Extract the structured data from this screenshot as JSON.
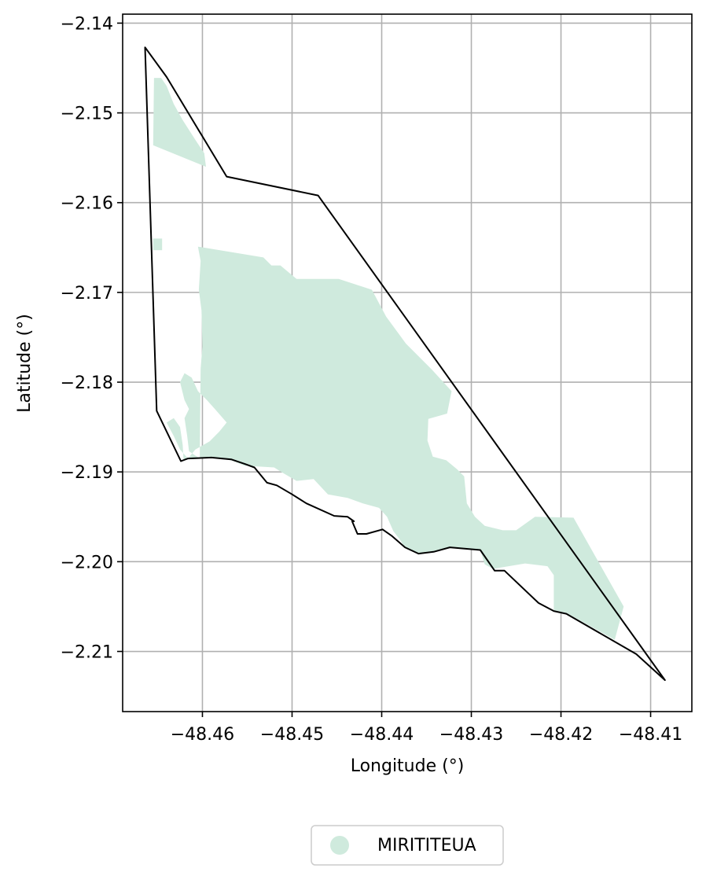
{
  "chart_data": {
    "type": "map",
    "xlabel": "Longitude (°)",
    "ylabel": "Latitude (°)",
    "xlim": [
      -48.4689,
      -48.4054
    ],
    "ylim": [
      -2.2167,
      -2.139
    ],
    "grid": true,
    "legend_position": "bottom-center",
    "x_ticks": [
      {
        "value": -48.46,
        "label": "−48.46"
      },
      {
        "value": -48.45,
        "label": "−48.45"
      },
      {
        "value": -48.44,
        "label": "−48.44"
      },
      {
        "value": -48.43,
        "label": "−48.43"
      },
      {
        "value": -48.42,
        "label": "−48.42"
      },
      {
        "value": -48.41,
        "label": "−48.41"
      }
    ],
    "y_ticks": [
      {
        "value": -2.14,
        "label": "−2.14"
      },
      {
        "value": -2.15,
        "label": "−2.15"
      },
      {
        "value": -2.16,
        "label": "−2.16"
      },
      {
        "value": -2.17,
        "label": "−2.17"
      },
      {
        "value": -2.18,
        "label": "−2.18"
      },
      {
        "value": -2.19,
        "label": "−2.19"
      },
      {
        "value": -2.2,
        "label": "−2.20"
      },
      {
        "value": -2.21,
        "label": "−2.21"
      }
    ],
    "boundary": [
      [
        -48.4664,
        -2.1427
      ],
      [
        -48.464,
        -2.146
      ],
      [
        -48.4573,
        -2.1571
      ],
      [
        -48.4471,
        -2.1592
      ],
      [
        -48.4084,
        -2.2132
      ],
      [
        -48.4116,
        -2.2103
      ],
      [
        -48.4194,
        -2.2058
      ],
      [
        -48.4208,
        -2.2055
      ],
      [
        -48.4225,
        -2.2046
      ],
      [
        -48.4263,
        -2.201
      ],
      [
        -48.4274,
        -2.201
      ],
      [
        -48.429,
        -2.1987
      ],
      [
        -48.4324,
        -2.1984
      ],
      [
        -48.4342,
        -2.1989
      ],
      [
        -48.4359,
        -2.1991
      ],
      [
        -48.4374,
        -2.1984
      ],
      [
        -48.4389,
        -2.1971
      ],
      [
        -48.4399,
        -2.1964
      ],
      [
        -48.4417,
        -2.1969
      ],
      [
        -48.4427,
        -2.1969
      ],
      [
        -48.4433,
        -2.1955
      ],
      [
        -48.4431,
        -2.1955
      ],
      [
        -48.4438,
        -2.195
      ],
      [
        -48.4453,
        -2.1949
      ],
      [
        -48.4484,
        -2.1935
      ],
      [
        -48.45,
        -2.1925
      ],
      [
        -48.4517,
        -2.1915
      ],
      [
        -48.4528,
        -2.1912
      ],
      [
        -48.4542,
        -2.1895
      ],
      [
        -48.4553,
        -2.1891
      ],
      [
        -48.4568,
        -2.1886
      ],
      [
        -48.459,
        -2.1884
      ],
      [
        -48.4616,
        -2.1885
      ],
      [
        -48.4624,
        -2.1888
      ],
      [
        -48.4651,
        -2.1832
      ],
      [
        -48.4664,
        -2.1427
      ]
    ],
    "series": [
      {
        "name": "MIRITITEUA",
        "color": "#cfeadd",
        "polygons": [
          [
            [
              -48.4654,
              -2.1461
            ],
            [
              -48.4646,
              -2.1461
            ],
            [
              -48.464,
              -2.147
            ],
            [
              -48.4632,
              -2.149
            ],
            [
              -48.4622,
              -2.1508
            ],
            [
              -48.4608,
              -2.153
            ],
            [
              -48.4598,
              -2.1545
            ],
            [
              -48.4596,
              -2.156
            ],
            [
              -48.4655,
              -2.1536
            ]
          ],
          [
            [
              -48.4605,
              -2.1649
            ],
            [
              -48.4532,
              -2.1661
            ],
            [
              -48.4523,
              -2.167
            ],
            [
              -48.4513,
              -2.167
            ],
            [
              -48.4495,
              -2.1685
            ],
            [
              -48.4448,
              -2.1685
            ],
            [
              -48.4411,
              -2.1697
            ],
            [
              -48.4395,
              -2.1727
            ],
            [
              -48.4373,
              -2.1757
            ],
            [
              -48.4344,
              -2.1786
            ],
            [
              -48.4322,
              -2.181
            ],
            [
              -48.4327,
              -2.1835
            ],
            [
              -48.4348,
              -2.1841
            ],
            [
              -48.4349,
              -2.1865
            ],
            [
              -48.4343,
              -2.1883
            ],
            [
              -48.4328,
              -2.1887
            ],
            [
              -48.4316,
              -2.1897
            ],
            [
              -48.4308,
              -2.1905
            ],
            [
              -48.4305,
              -2.1935
            ],
            [
              -48.4296,
              -2.195
            ],
            [
              -48.4285,
              -2.196
            ],
            [
              -48.4265,
              -2.1965
            ],
            [
              -48.425,
              -2.1965
            ],
            [
              -48.4229,
              -2.195
            ],
            [
              -48.4186,
              -2.1951
            ],
            [
              -48.413,
              -2.205
            ],
            [
              -48.414,
              -2.2087
            ],
            [
              -48.4194,
              -2.2057
            ],
            [
              -48.4208,
              -2.2054
            ],
            [
              -48.4208,
              -2.2015
            ],
            [
              -48.4215,
              -2.2005
            ],
            [
              -48.424,
              -2.2002
            ],
            [
              -48.4276,
              -2.2008
            ],
            [
              -48.4285,
              -2.2003
            ],
            [
              -48.429,
              -2.1987
            ],
            [
              -48.4324,
              -2.1984
            ],
            [
              -48.4342,
              -2.1989
            ],
            [
              -48.4359,
              -2.1991
            ],
            [
              -48.4374,
              -2.1984
            ],
            [
              -48.438,
              -2.1975
            ],
            [
              -48.4387,
              -2.1966
            ],
            [
              -48.4394,
              -2.195
            ],
            [
              -48.4403,
              -2.194
            ],
            [
              -48.4421,
              -2.1935
            ],
            [
              -48.4438,
              -2.1929
            ],
            [
              -48.446,
              -2.1925
            ],
            [
              -48.4476,
              -2.1908
            ],
            [
              -48.4495,
              -2.191
            ],
            [
              -48.4512,
              -2.19
            ],
            [
              -48.452,
              -2.1895
            ],
            [
              -48.4553,
              -2.1893
            ],
            [
              -48.4568,
              -2.1887
            ],
            [
              -48.459,
              -2.1884
            ],
            [
              -48.4616,
              -2.1885
            ],
            [
              -48.4608,
              -2.1875
            ],
            [
              -48.4592,
              -2.1866
            ],
            [
              -48.4581,
              -2.1855
            ],
            [
              -48.4573,
              -2.1845
            ],
            [
              -48.4586,
              -2.183
            ],
            [
              -48.4595,
              -2.182
            ],
            [
              -48.4605,
              -2.181
            ],
            [
              -48.4612,
              -2.1795
            ],
            [
              -48.462,
              -2.179
            ],
            [
              -48.4625,
              -2.18
            ],
            [
              -48.462,
              -2.182
            ],
            [
              -48.4615,
              -2.183
            ],
            [
              -48.462,
              -2.184
            ],
            [
              -48.4617,
              -2.186
            ],
            [
              -48.4615,
              -2.1877
            ],
            [
              -48.4603,
              -2.1885
            ],
            [
              -48.4602,
              -2.1785
            ],
            [
              -48.46,
              -2.176
            ],
            [
              -48.4601,
              -2.172
            ],
            [
              -48.4604,
              -2.1697
            ],
            [
              -48.4602,
              -2.1665
            ]
          ],
          [
            [
              -48.4655,
              -2.164
            ],
            [
              -48.4645,
              -2.164
            ],
            [
              -48.4645,
              -2.1653
            ],
            [
              -48.4655,
              -2.1653
            ]
          ],
          [
            [
              -48.4616,
              -2.1885
            ],
            [
              -48.4625,
              -2.1875
            ],
            [
              -48.4632,
              -2.186
            ],
            [
              -48.464,
              -2.1845
            ],
            [
              -48.4632,
              -2.184
            ],
            [
              -48.4625,
              -2.185
            ],
            [
              -48.4622,
              -2.187
            ],
            [
              -48.4621,
              -2.1887
            ]
          ]
        ]
      }
    ]
  }
}
